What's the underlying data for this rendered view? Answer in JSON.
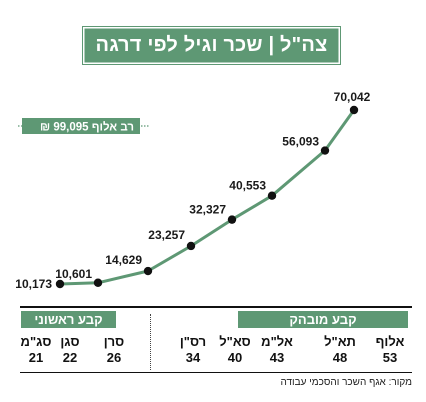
{
  "title": "צה\"ל | שכר וגיל לפי דרגה",
  "reference_label": "רב אלוף",
  "reference_value": "99,095 ₪",
  "groups": {
    "permanent_senior": "קבע מובהק",
    "permanent_first": "קבע ראשוני"
  },
  "source": "מקור: אגף השכר והסכמי עבודה",
  "colors": {
    "accent": "#5e9874",
    "line": "#5e9874",
    "point": "#111111"
  },
  "chart_data": {
    "type": "line",
    "title": "צה\"ל | שכר וגיל לפי דרגה",
    "xlabel": "",
    "ylabel": "",
    "categories": [
      "סג\"מ",
      "סגן",
      "סרן",
      "רס\"ן",
      "סא\"ל",
      "אל\"מ",
      "תא\"ל",
      "אלוף"
    ],
    "ages": [
      "21",
      "22",
      "26",
      "34",
      "40",
      "43",
      "48",
      "53"
    ],
    "values": [
      10173,
      10601,
      14629,
      23257,
      32327,
      40553,
      56093,
      70042
    ],
    "value_labels": [
      "10,173",
      "10,601",
      "14,629",
      "23,257",
      "32,327",
      "40,553",
      "56,093",
      "70,042"
    ],
    "ylim": [
      0,
      75000
    ],
    "grid": false,
    "reference": {
      "label": "רב אלוף",
      "value": 99095
    }
  }
}
